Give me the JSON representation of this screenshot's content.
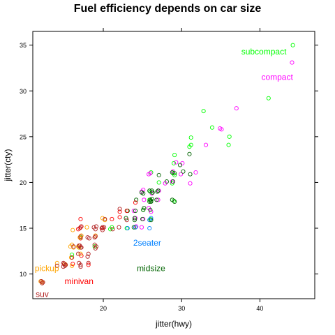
{
  "chart_data": {
    "type": "scatter",
    "title": "Fuel efficiency depends on car size",
    "xlabel": "jitter(hwy)",
    "ylabel": "jitter(cty)",
    "xlim": [
      11,
      47
    ],
    "ylim": [
      7.3,
      36.5
    ],
    "xticks": [
      20,
      30,
      40
    ],
    "yticks": [
      10,
      15,
      20,
      25,
      30,
      35
    ],
    "grid": false,
    "legend": "labels placed directly on the plot",
    "series": [
      {
        "name": "subcompact",
        "color": "#00ff00",
        "points": [
          [
            44.2,
            35.0
          ],
          [
            41.1,
            29.2
          ],
          [
            36.1,
            25.0
          ],
          [
            36.0,
            24.1
          ],
          [
            33.9,
            26.0
          ],
          [
            32.8,
            27.8
          ],
          [
            31.2,
            24.9
          ],
          [
            31.0,
            23.9
          ],
          [
            31.2,
            24.1
          ],
          [
            29.1,
            23.0
          ],
          [
            29.0,
            22.1
          ],
          [
            28.9,
            21.0
          ],
          [
            29.1,
            20.8
          ],
          [
            28.8,
            19.9
          ],
          [
            27.1,
            20.0
          ],
          [
            26.1,
            21.1
          ],
          [
            26.0,
            19.0
          ],
          [
            25.9,
            18.1
          ],
          [
            25.1,
            17.0
          ],
          [
            26.0,
            16.0
          ],
          [
            24.1,
            15.1
          ],
          [
            23.0,
            15.0
          ],
          [
            21.1,
            15.1
          ],
          [
            20.9,
            14.9
          ],
          [
            18.9,
            13.0
          ],
          [
            17.1,
            14.0
          ],
          [
            16.9,
            12.9
          ],
          [
            16.0,
            12.1
          ],
          [
            29.0,
            18.0
          ],
          [
            26.2,
            18.9
          ]
        ]
      },
      {
        "name": "compact",
        "color": "#ff00ff",
        "points": [
          [
            44.1,
            33.1
          ],
          [
            37.0,
            28.1
          ],
          [
            35.1,
            25.8
          ],
          [
            34.9,
            25.9
          ],
          [
            33.1,
            24.1
          ],
          [
            31.8,
            21.1
          ],
          [
            31.1,
            19.9
          ],
          [
            30.1,
            22.1
          ],
          [
            29.9,
            20.9
          ],
          [
            29.3,
            22.2
          ],
          [
            28.9,
            21.2
          ],
          [
            28.8,
            20.1
          ],
          [
            27.9,
            19.9
          ],
          [
            27.1,
            19.1
          ],
          [
            26.0,
            21.0
          ],
          [
            25.8,
            20.9
          ],
          [
            26.2,
            18.8
          ],
          [
            25.1,
            19.2
          ],
          [
            24.9,
            19.0
          ],
          [
            25.2,
            18.1
          ],
          [
            25.8,
            17.2
          ],
          [
            25.1,
            16.0
          ],
          [
            24.2,
            15.2
          ],
          [
            24.9,
            15.1
          ],
          [
            24.1,
            16.1
          ],
          [
            26.1,
            16.8
          ],
          [
            27.0,
            18.1
          ],
          [
            23.9,
            16.9
          ]
        ]
      },
      {
        "name": "2seater",
        "color": "#0080ff",
        "points": [
          [
            26.1,
            16.1
          ],
          [
            25.9,
            15.9
          ],
          [
            24.1,
            15.1
          ],
          [
            25.9,
            15.0
          ],
          [
            23.1,
            15.0
          ]
        ]
      },
      {
        "name": "midsize",
        "color": "#006400",
        "points": [
          [
            31.0,
            23.1
          ],
          [
            29.8,
            21.9
          ],
          [
            29.1,
            21.0
          ],
          [
            28.9,
            20.1
          ],
          [
            28.8,
            21.1
          ],
          [
            27.1,
            20.8
          ],
          [
            26.9,
            19.0
          ],
          [
            26.2,
            19.1
          ],
          [
            25.9,
            19.1
          ],
          [
            26.0,
            18.1
          ],
          [
            26.1,
            17.9
          ],
          [
            26.2,
            18.2
          ],
          [
            25.9,
            17.9
          ],
          [
            26.1,
            18.0
          ],
          [
            26.8,
            18.1
          ],
          [
            25.1,
            18.8
          ],
          [
            24.9,
            18.9
          ],
          [
            24.2,
            18.1
          ],
          [
            25.2,
            17.2
          ],
          [
            26.0,
            17.0
          ],
          [
            24.1,
            16.9
          ],
          [
            25.0,
            16.0
          ],
          [
            26.1,
            15.9
          ],
          [
            24.0,
            16.1
          ],
          [
            23.1,
            16.9
          ],
          [
            22.9,
            16.1
          ],
          [
            24.0,
            15.9
          ],
          [
            29.1,
            17.9
          ],
          [
            28.8,
            18.1
          ],
          [
            30.2,
            21.2
          ],
          [
            31.1,
            20.9
          ],
          [
            26.3,
            18.9
          ],
          [
            25.1,
            17.0
          ],
          [
            27.0,
            19.1
          ],
          [
            28.1,
            20.1
          ],
          [
            23.9,
            15.1
          ]
        ]
      },
      {
        "name": "minivan",
        "color": "#ff0000",
        "points": [
          [
            24.1,
            17.8
          ],
          [
            23.0,
            16.9
          ],
          [
            22.1,
            16.8
          ],
          [
            22.1,
            16.2
          ],
          [
            21.1,
            16.0
          ],
          [
            19.9,
            15.0
          ],
          [
            17.1,
            16.0
          ],
          [
            17.1,
            15.1
          ],
          [
            16.8,
            14.9
          ],
          [
            17.1,
            13.9
          ],
          [
            16.1,
            11.1
          ],
          [
            18.1,
            11.0
          ],
          [
            17.2,
            12.0
          ]
        ]
      },
      {
        "name": "pickup",
        "color": "#ffa500",
        "points": [
          [
            20.2,
            15.9
          ],
          [
            19.9,
            16.1
          ],
          [
            17.9,
            15.1
          ],
          [
            17.2,
            14.2
          ],
          [
            17.0,
            14.0
          ],
          [
            16.1,
            14.8
          ],
          [
            16.8,
            13.0
          ],
          [
            16.0,
            13.2
          ],
          [
            15.8,
            13.0
          ],
          [
            15.9,
            11.8
          ],
          [
            15.1,
            11.1
          ],
          [
            16.0,
            10.9
          ],
          [
            12.2,
            9.1
          ],
          [
            12.0,
            9.2
          ],
          [
            14.1,
            11.2
          ],
          [
            15.2,
            11.0
          ],
          [
            19.0,
            14.2
          ],
          [
            16.9,
            12.9
          ],
          [
            17.1,
            12.2
          ],
          [
            16.2,
            12.9
          ]
        ]
      },
      {
        "name": "suv",
        "color": "#b22222",
        "points": [
          [
            22.1,
            17.1
          ],
          [
            20.2,
            16.0
          ],
          [
            19.9,
            15.1
          ],
          [
            19.1,
            15.2
          ],
          [
            19.0,
            14.9
          ],
          [
            18.9,
            14.0
          ],
          [
            19.0,
            14.1
          ],
          [
            18.0,
            14.0
          ],
          [
            17.1,
            14.1
          ],
          [
            17.2,
            12.9
          ],
          [
            17.0,
            13.1
          ],
          [
            19.1,
            13.0
          ],
          [
            19.0,
            12.8
          ],
          [
            18.1,
            12.2
          ],
          [
            18.0,
            11.9
          ],
          [
            17.1,
            11.0
          ],
          [
            16.9,
            11.2
          ],
          [
            15.0,
            11.1
          ],
          [
            14.1,
            10.9
          ],
          [
            15.2,
            11.0
          ],
          [
            14.9,
            11.2
          ],
          [
            12.1,
            9.2
          ],
          [
            12.2,
            9.0
          ],
          [
            12.3,
            9.1
          ],
          [
            15.1,
            10.9
          ],
          [
            18.2,
            13.9
          ],
          [
            19.8,
            15.0
          ],
          [
            18.8,
            15.1
          ],
          [
            17.0,
            15.0
          ],
          [
            16.2,
            13.0
          ],
          [
            17.1,
            12.9
          ],
          [
            16.8,
            12.2
          ],
          [
            23.0,
            15.9
          ],
          [
            22.0,
            15.1
          ],
          [
            21.2,
            14.9
          ],
          [
            20.1,
            15.1
          ],
          [
            19.9,
            14.8
          ],
          [
            18.9,
            13.2
          ],
          [
            18.1,
            11.2
          ],
          [
            16.0,
            11.8
          ],
          [
            15.0,
            11.1
          ],
          [
            17.2,
            15.2
          ],
          [
            17.1,
            10.8
          ],
          [
            14.9,
            10.8
          ],
          [
            16.9,
            13.1
          ]
        ]
      }
    ],
    "labels": [
      {
        "text": "subcompact",
        "series": "subcompact",
        "x": 40.5,
        "y": 34.3
      },
      {
        "text": "compact",
        "series": "compact",
        "x": 42.2,
        "y": 31.5
      },
      {
        "text": "2seater",
        "series": "2seater",
        "x": 25.6,
        "y": 13.4
      },
      {
        "text": "midsize",
        "series": "midsize",
        "x": 26.1,
        "y": 10.6
      },
      {
        "text": "pickup",
        "series": "pickup",
        "x": 12.8,
        "y": 10.6
      },
      {
        "text": "minivan",
        "series": "minivan",
        "x": 16.9,
        "y": 9.2
      },
      {
        "text": "suv",
        "series": "suv",
        "x": 12.2,
        "y": 7.8
      }
    ]
  }
}
